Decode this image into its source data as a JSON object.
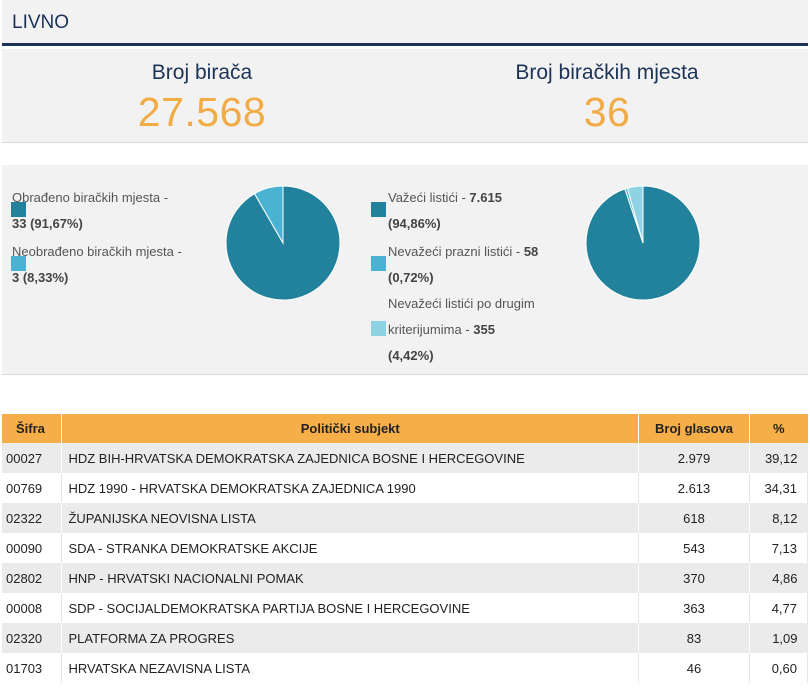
{
  "header": {
    "title": "LIVNO"
  },
  "stats": {
    "voters_label": "Broj birača",
    "voters_value": "27.568",
    "stations_label": "Broj biračkih mjesta",
    "stations_value": "36"
  },
  "processing_chart": {
    "legend": [
      {
        "text": "Obrađeno biračkih mjesta -",
        "value": "33 (91,67%)",
        "color": "#23829b"
      },
      {
        "text": "Neobrađeno biračkih mjesta -",
        "value": "3 (8,33%)",
        "color": "#4ab3d4"
      }
    ]
  },
  "ballots_chart": {
    "legend": [
      {
        "text_before": "Važeći listići - ",
        "value": "7.615",
        "pct": "(94,86%)",
        "color": "#23829b"
      },
      {
        "text_before": "Nevažeći prazni listići - ",
        "value": "58",
        "pct": "(0,72%)",
        "color": "#4ab3d4"
      },
      {
        "line1": "Nevažeći listići po drugim",
        "text_before": "kriterijumima - ",
        "value": "355",
        "pct": "(4,42%)",
        "color": "#8fd2e4"
      }
    ]
  },
  "chart_data": [
    {
      "type": "pie",
      "categories": [
        "Obrađeno biračkih mjesta",
        "Neobrađeno biračkih mjesta"
      ],
      "values": [
        33,
        3
      ],
      "colors": [
        "#23829b",
        "#4ab3d4"
      ]
    },
    {
      "type": "pie",
      "categories": [
        "Važeći listići",
        "Nevažeći prazni listići",
        "Nevažeći listići po drugim kriterijumima"
      ],
      "values": [
        7615,
        58,
        355
      ],
      "colors": [
        "#23829b",
        "#4ab3d4",
        "#8fd2e4"
      ]
    }
  ],
  "table": {
    "headers": {
      "code": "Šifra",
      "party": "Politički subjekt",
      "votes": "Broj glasova",
      "pct": "%"
    },
    "rows": [
      {
        "code": "00027",
        "party": "HDZ BIH-HRVATSKA DEMOKRATSKA ZAJEDNICA BOSNE I HERCEGOVINE",
        "votes": "2.979",
        "pct": "39,12"
      },
      {
        "code": "00769",
        "party": "HDZ 1990 - HRVATSKA DEMOKRATSKA ZAJEDNICA 1990",
        "votes": "2.613",
        "pct": "34,31"
      },
      {
        "code": "02322",
        "party": "ŽUPANIJSKA NEOVISNA LISTA",
        "votes": "618",
        "pct": "8,12"
      },
      {
        "code": "00090",
        "party": "SDA - STRANKA DEMOKRATSKE AKCIJE",
        "votes": "543",
        "pct": "7,13"
      },
      {
        "code": "02802",
        "party": "HNP - HRVATSKI NACIONALNI POMAK",
        "votes": "370",
        "pct": "4,86"
      },
      {
        "code": "00008",
        "party": "SDP - SOCIJALDEMOKRATSKA PARTIJA BOSNE I HERCEGOVINE",
        "votes": "363",
        "pct": "4,77"
      },
      {
        "code": "02320",
        "party": "PLATFORMA ZA PROGRES",
        "votes": "83",
        "pct": "1,09"
      },
      {
        "code": "01703",
        "party": "HRVATSKA NEZAVISNA LISTA",
        "votes": "46",
        "pct": "0,60"
      }
    ]
  }
}
